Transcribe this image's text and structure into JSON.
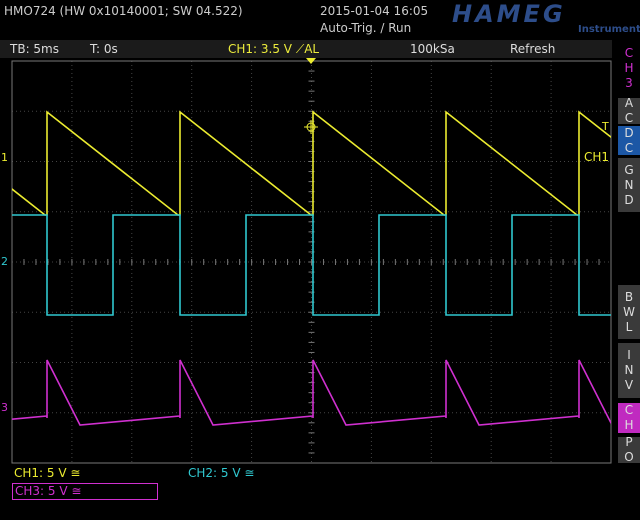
{
  "header": {
    "model": "HMO724 (HW 0x10140001; SW 04.522)",
    "date": "2015-01-04 16:05",
    "status": "Auto-Trig. / Run",
    "logo": "HAMEG",
    "logo_sub": "Instruments"
  },
  "status_bar": {
    "timebase": "TB: 5ms",
    "trigger_time": "T: 0s",
    "trigger": "CH1: 3.5 V ⟋AL",
    "sample_rate": "100kSa",
    "mode": "Refresh"
  },
  "side_menu": {
    "channel": "CH3",
    "buttons": [
      "AC",
      "DC",
      "GND",
      "BWL",
      "INV",
      "CH",
      "PO"
    ]
  },
  "markers": {
    "ch1": "1",
    "ch2": "2",
    "ch3": "3",
    "trigger": "T",
    "trigger_channel": "CH1"
  },
  "channels": [
    "CH1: 5 V ≅",
    "CH2: 5 V ≅",
    "CH3: 5 V ≅"
  ]
}
